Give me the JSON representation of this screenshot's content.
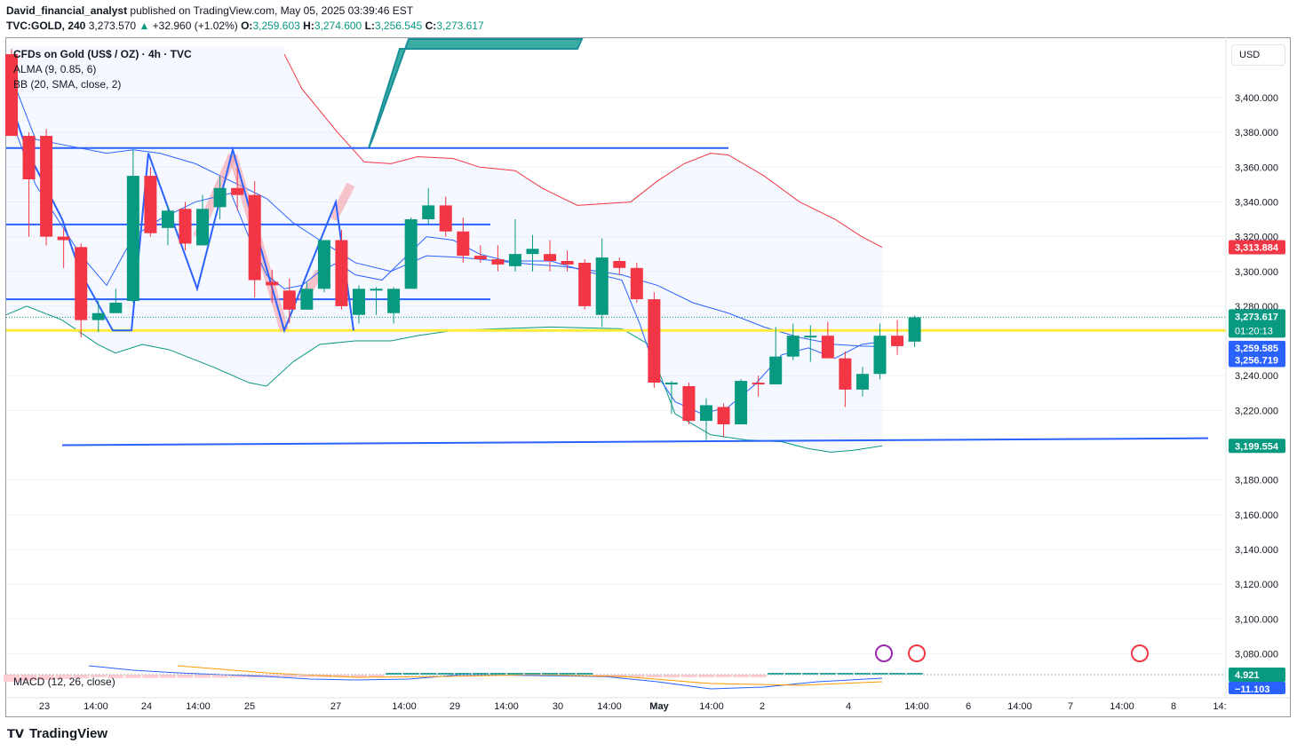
{
  "header": {
    "author": "David_financial_analyst",
    "published": "published on TradingView.com, May 05, 2025 03:39:46 EST",
    "symbol": "TVC:GOLD, 240",
    "last": "3,273.570",
    "arrow": "▲",
    "change": "+32.960 (+1.02%)",
    "o_label": "O:",
    "o": "3,259.603",
    "h_label": "H:",
    "h": "3,274.600",
    "l_label": "L:",
    "l": "3,256.545",
    "c_label": "C:",
    "c": "3,273.617"
  },
  "legend": {
    "title": "CFDs on Gold (US$ / OZ) · 4h · TVC",
    "alma": "ALMA (9, 0.85, 6)",
    "bb": "BB (20, SMA, close, 2)",
    "macd": "MACD (12, 26, close)"
  },
  "currency_button": "USD",
  "price_labels": {
    "bb_upper": "3,313.884",
    "last": "3,273.617",
    "countdown": "01:20:13",
    "alma": "3,259.585",
    "bb_basis": "3,256.719",
    "bb_lower": "3,199.554",
    "macd": "4.921",
    "signal": "−11.103"
  },
  "colors": {
    "up": "#089981",
    "down": "#f23645",
    "accent": "#2962ff",
    "yellow": "#ffeb3b",
    "bb_upper": "#f23645",
    "bb_lower": "#089981"
  },
  "footer": {
    "brand": "TradingView"
  },
  "chart_data": {
    "type": "candlestick",
    "instrument": "TVC:GOLD",
    "timeframe": "240",
    "ylim": [
      3060,
      3430
    ],
    "y_ticks": [
      3400,
      3380,
      3360,
      3340,
      3320,
      3300,
      3280,
      3240,
      3220,
      3180,
      3160,
      3140,
      3120,
      3100,
      3080
    ],
    "y_tick_labels": [
      "3,400.000",
      "3,380.000",
      "3,360.000",
      "3,340.000",
      "3,320.000",
      "3,300.000",
      "3,280.000",
      "3,240.000",
      "3,220.000",
      "3,180.000",
      "3,160.000",
      "3,140.000",
      "3,120.000",
      "3,100.000",
      "3,080.000"
    ],
    "x_tick_labels": [
      "23",
      "14:00",
      "24",
      "14:00",
      "25",
      "27",
      "14:00",
      "29",
      "14:00",
      "30",
      "14:00",
      "May",
      "14:00",
      "2",
      "4",
      "14:00",
      "6",
      "14:00",
      "7",
      "14:00",
      "8",
      "14:"
    ],
    "candles": [
      [
        3425,
        3428,
        3378,
        3378
      ],
      [
        3378,
        3380,
        3320,
        3353
      ],
      [
        3378,
        3382,
        3315,
        3320
      ],
      [
        3320,
        3325,
        3302,
        3318
      ],
      [
        3314,
        3316,
        3262,
        3272
      ],
      [
        3272,
        3283,
        3265,
        3276
      ],
      [
        3276,
        3290,
        3278,
        3282
      ],
      [
        3283,
        3370,
        3282,
        3355
      ],
      [
        3355,
        3360,
        3320,
        3322
      ],
      [
        3325,
        3338,
        3315,
        3335
      ],
      [
        3336,
        3340,
        3312,
        3316
      ],
      [
        3315,
        3344,
        3315,
        3336
      ],
      [
        3337,
        3355,
        3330,
        3348
      ],
      [
        3348,
        3360,
        3335,
        3344
      ],
      [
        3344,
        3352,
        3285,
        3295
      ],
      [
        3294,
        3301,
        3282,
        3292
      ],
      [
        3289,
        3296,
        3270,
        3278
      ],
      [
        3278,
        3294,
        3278,
        3290
      ],
      [
        3290,
        3318,
        3288,
        3318
      ],
      [
        3318,
        3324,
        3278,
        3280
      ],
      [
        3275,
        3292,
        3270,
        3290
      ],
      [
        3290,
        3291,
        3275,
        3290
      ],
      [
        3276,
        3291,
        3270,
        3290
      ],
      [
        3290,
        3331,
        3292,
        3330
      ],
      [
        3330,
        3348,
        3327,
        3338
      ],
      [
        3338,
        3343,
        3320,
        3323
      ],
      [
        3323,
        3331,
        3305,
        3309
      ],
      [
        3309,
        3315,
        3305,
        3307
      ],
      [
        3307,
        3315,
        3300,
        3304
      ],
      [
        3303,
        3330,
        3300,
        3310
      ],
      [
        3310,
        3321,
        3300,
        3313
      ],
      [
        3310,
        3318,
        3300,
        3306
      ],
      [
        3306,
        3312,
        3300,
        3304
      ],
      [
        3305,
        3307,
        3278,
        3280
      ],
      [
        3275,
        3319,
        3268,
        3308
      ],
      [
        3306,
        3308,
        3298,
        3302
      ],
      [
        3302,
        3305,
        3282,
        3284
      ],
      [
        3284,
        3288,
        3233,
        3236
      ],
      [
        3236,
        3237,
        3218,
        3236
      ],
      [
        3234,
        3236,
        3212,
        3214
      ],
      [
        3214,
        3227,
        3203,
        3223
      ],
      [
        3222,
        3224,
        3205,
        3212
      ],
      [
        3212,
        3238,
        3212,
        3237
      ],
      [
        3236,
        3240,
        3228,
        3235
      ],
      [
        3235,
        3268,
        3236,
        3251
      ],
      [
        3251,
        3270,
        3249,
        3263
      ],
      [
        3263,
        3269,
        3248,
        3263
      ],
      [
        3263,
        3271,
        3250,
        3250
      ],
      [
        3250,
        3254,
        3222,
        3232
      ],
      [
        3232,
        3245,
        3228,
        3241
      ],
      [
        3241,
        3270,
        3238,
        3263
      ],
      [
        3263,
        3272,
        3252,
        3257
      ],
      [
        3259.6,
        3274.6,
        3256.5,
        3273.6
      ]
    ],
    "levels": [
      3371,
      3327,
      3284,
      3266,
      3204
    ],
    "macd_value": 4.921,
    "signal_value": -11.103
  }
}
